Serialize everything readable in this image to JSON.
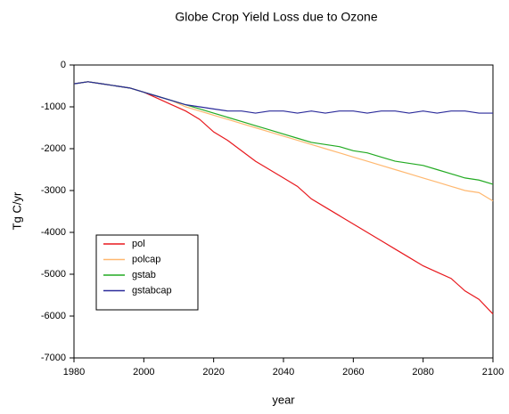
{
  "chart_data": {
    "type": "line",
    "title": "Globe Crop Yield Loss due to Ozone",
    "x_label": "year",
    "y_label": "Tg C/yr",
    "x": [
      1980,
      1984,
      1988,
      1992,
      1996,
      2000,
      2004,
      2008,
      2012,
      2016,
      2020,
      2024,
      2028,
      2032,
      2036,
      2040,
      2044,
      2048,
      2052,
      2056,
      2060,
      2064,
      2068,
      2072,
      2076,
      2080,
      2084,
      2088,
      2092,
      2096,
      2100
    ],
    "series": [
      {
        "name": "pol",
        "color": "#e8191e",
        "values": [
          -450,
          -400,
          -450,
          -500,
          -550,
          -650,
          -800,
          -950,
          -1100,
          -1300,
          -1600,
          -1800,
          -2050,
          -2300,
          -2500,
          -2700,
          -2900,
          -3200,
          -3400,
          -3600,
          -3800,
          -4000,
          -4200,
          -4400,
          -4600,
          -4800,
          -4950,
          -5100,
          -5400,
          -5600,
          -5950
        ]
      },
      {
        "name": "polcap",
        "color": "#ffb870",
        "values": [
          -450,
          -400,
          -450,
          -500,
          -550,
          -650,
          -750,
          -850,
          -1000,
          -1100,
          -1200,
          -1300,
          -1400,
          -1500,
          -1600,
          -1700,
          -1800,
          -1900,
          -2000,
          -2100,
          -2200,
          -2300,
          -2400,
          -2500,
          -2600,
          -2700,
          -2800,
          -2900,
          -3000,
          -3050,
          -3250
        ]
      },
      {
        "name": "gstab",
        "color": "#22aa22",
        "values": [
          -450,
          -400,
          -450,
          -500,
          -550,
          -650,
          -750,
          -850,
          -950,
          -1050,
          -1150,
          -1250,
          -1350,
          -1450,
          -1550,
          -1650,
          -1750,
          -1850,
          -1900,
          -1950,
          -2050,
          -2100,
          -2200,
          -2300,
          -2350,
          -2400,
          -2500,
          -2600,
          -2700,
          -2750,
          -2850
        ]
      },
      {
        "name": "gstabcap",
        "color": "#2a2a9a",
        "values": [
          -450,
          -400,
          -450,
          -500,
          -550,
          -650,
          -750,
          -850,
          -950,
          -1000,
          -1050,
          -1100,
          -1100,
          -1150,
          -1100,
          -1100,
          -1150,
          -1100,
          -1150,
          -1100,
          -1100,
          -1150,
          -1100,
          -1100,
          -1150,
          -1100,
          -1150,
          -1100,
          -1100,
          -1150,
          -1150
        ]
      }
    ],
    "xlim": [
      1980,
      2100
    ],
    "xticks": [
      1980,
      2000,
      2020,
      2040,
      2060,
      2080,
      2100
    ],
    "ylim": [
      -7000,
      0
    ],
    "yticks": [
      0,
      -1000,
      -2000,
      -3000,
      -4000,
      -5000,
      -6000,
      -7000
    ],
    "grid": false,
    "legend": "lower left"
  }
}
